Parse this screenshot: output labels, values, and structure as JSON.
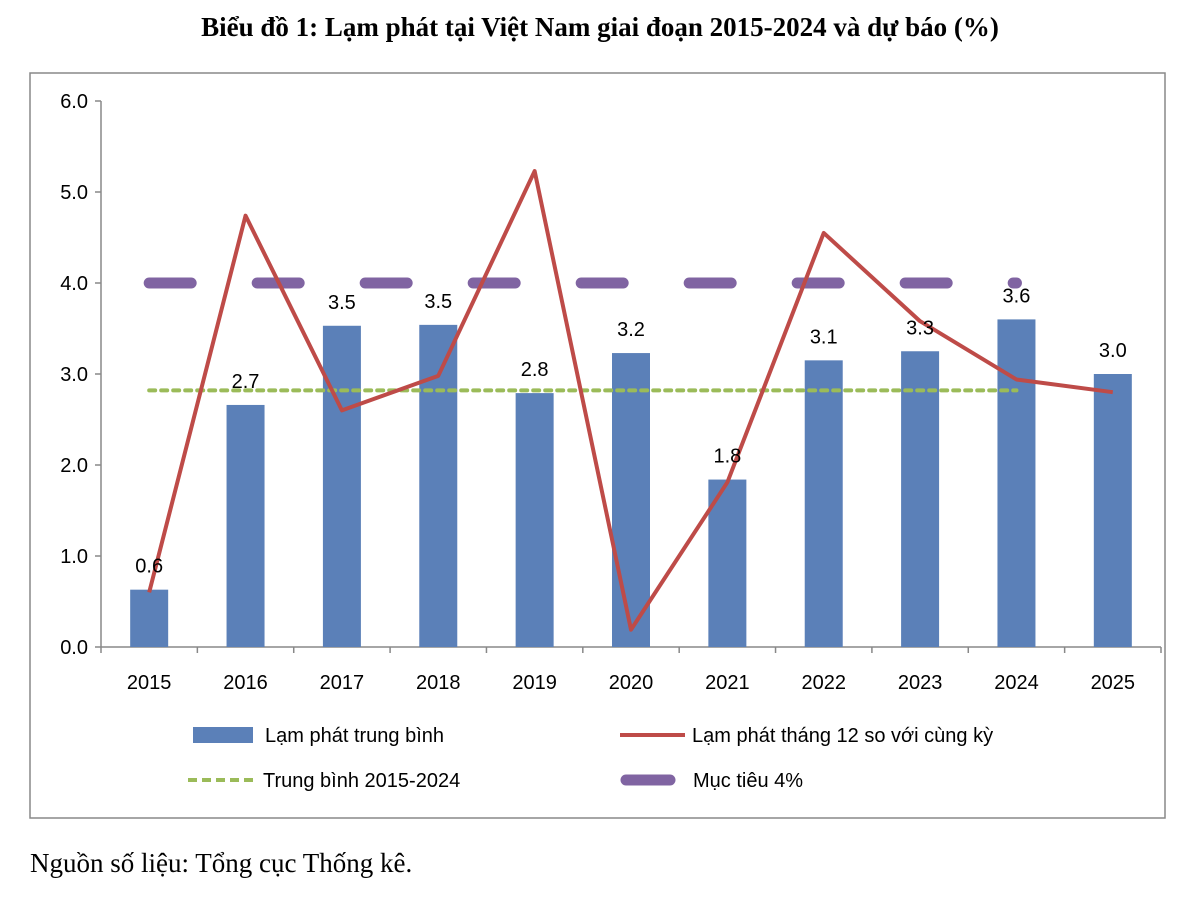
{
  "chart_data": {
    "type": "bar",
    "title": "Biểu đồ 1: Lạm phát tại Việt Nam giai đoạn 2015-2024 và dự báo (%)",
    "xlabel": "",
    "ylabel": "",
    "ylim": [
      0,
      6
    ],
    "yticks": [
      "0.0",
      "1.0",
      "2.0",
      "3.0",
      "4.0",
      "5.0",
      "6.0"
    ],
    "categories": [
      "2015",
      "2016",
      "2017",
      "2018",
      "2019",
      "2020",
      "2021",
      "2022",
      "2023",
      "2024",
      "2025"
    ],
    "grid": false,
    "legend_position": "bottom",
    "series": [
      {
        "name": "Lạm phát trung bình",
        "type": "bar",
        "color": "#5b80b8",
        "values": [
          0.63,
          2.66,
          3.53,
          3.54,
          2.79,
          3.23,
          1.84,
          3.15,
          3.25,
          3.6,
          3.0
        ],
        "labels": [
          "0.6",
          "2.7",
          "3.5",
          "3.5",
          "2.8",
          "3.2",
          "1.8",
          "3.1",
          "3.3",
          "3.6",
          "3.0"
        ]
      },
      {
        "name": "Lạm phát tháng 12 so với cùng kỳ",
        "type": "line",
        "color": "#be4b48",
        "values": [
          0.6,
          4.74,
          2.6,
          2.98,
          5.23,
          0.19,
          1.81,
          4.55,
          3.58,
          2.94,
          2.8
        ]
      },
      {
        "name": "Trung bình 2015-2024",
        "type": "line-dotted",
        "color": "#9bbb59",
        "values": [
          2.82,
          2.82,
          2.82,
          2.82,
          2.82,
          2.82,
          2.82,
          2.82,
          2.82,
          2.82,
          null
        ]
      },
      {
        "name": "Mục tiêu 4%",
        "type": "line-dashed",
        "color": "#8064a2",
        "values": [
          4,
          4,
          4,
          4,
          4,
          4,
          4,
          4,
          4,
          4,
          null
        ]
      }
    ]
  },
  "source": "Nguồn số liệu: Tổng cục Thống kê."
}
